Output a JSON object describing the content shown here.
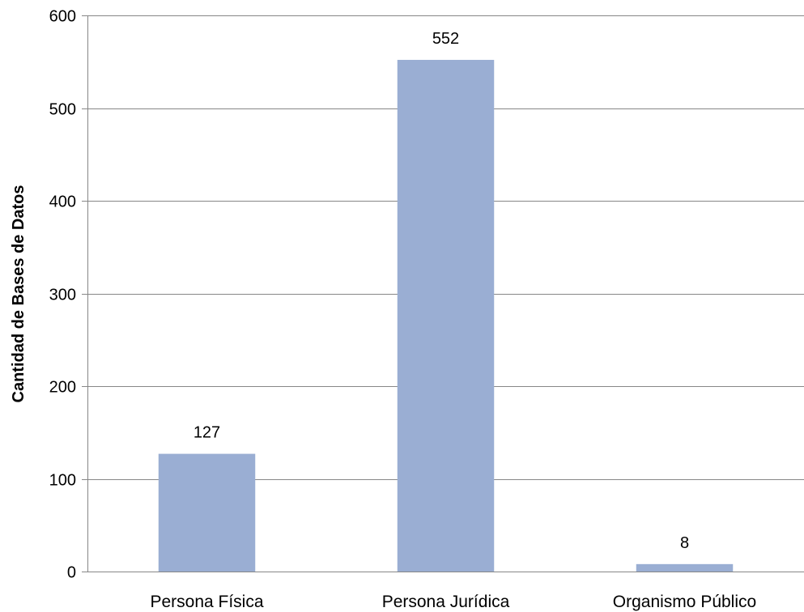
{
  "chart_data": {
    "type": "bar",
    "title": "",
    "xlabel": "",
    "ylabel": "Cantidad de Bases de Datos",
    "categories": [
      "Persona Física",
      "Persona Jurídica",
      "Organismo Público"
    ],
    "values": [
      127,
      552,
      8
    ],
    "data_labels": [
      "127",
      "552",
      "8"
    ],
    "ylim": [
      0,
      600
    ],
    "yticks": [
      0,
      100,
      200,
      300,
      400,
      500,
      600
    ],
    "ytick_labels": [
      "0",
      "100",
      "200",
      "300",
      "400",
      "500",
      "600"
    ],
    "grid": true,
    "legend": "none",
    "colors": {
      "bar": "#9AAED3",
      "grid": "#878787",
      "axis": "#878787"
    }
  }
}
